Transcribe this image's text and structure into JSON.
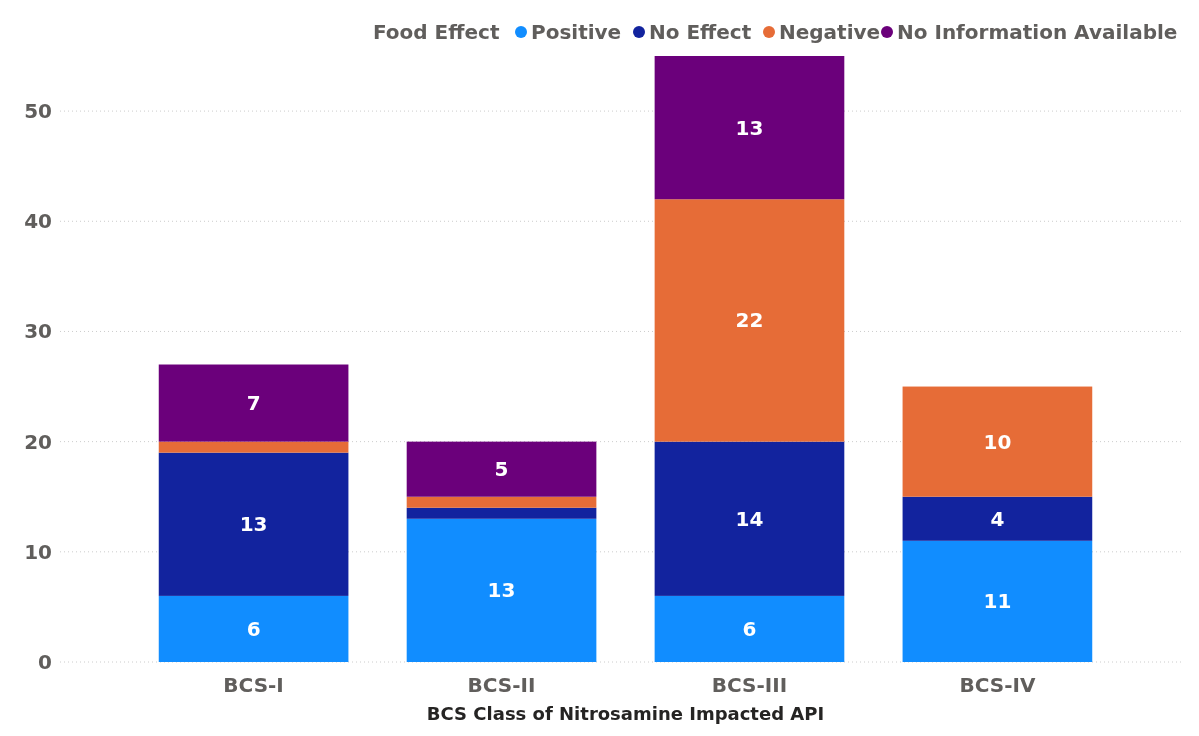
{
  "chart_data": {
    "type": "bar",
    "stacked": true,
    "xlabel": "BCS Class of Nitrosamine Impacted API",
    "legend_title": "Food Effect",
    "legend": "top right",
    "grid": "y",
    "categories": [
      "BCS-I",
      "BCS-II",
      "BCS-III",
      "BCS-IV"
    ],
    "ylim": [
      0,
      55
    ],
    "yticks": [
      0,
      10,
      20,
      30,
      40,
      50
    ],
    "series": [
      {
        "name": "Positive",
        "color": "#118dff",
        "values": [
          6,
          13,
          6,
          11
        ],
        "value_labels": [
          "6",
          "13",
          "6",
          "11"
        ]
      },
      {
        "name": "No Effect",
        "color": "#12239e",
        "values": [
          13,
          1,
          14,
          4
        ],
        "value_labels": [
          "13",
          null,
          "14",
          "4"
        ]
      },
      {
        "name": "Negative",
        "color": "#e66c37",
        "values": [
          1,
          1,
          22,
          10
        ],
        "value_labels": [
          null,
          null,
          "22",
          "10"
        ]
      },
      {
        "name": "No Information Available",
        "color": "#6b007b",
        "values": [
          7,
          5,
          13,
          null
        ],
        "value_labels": [
          "7",
          "5",
          "13",
          null
        ]
      }
    ]
  }
}
